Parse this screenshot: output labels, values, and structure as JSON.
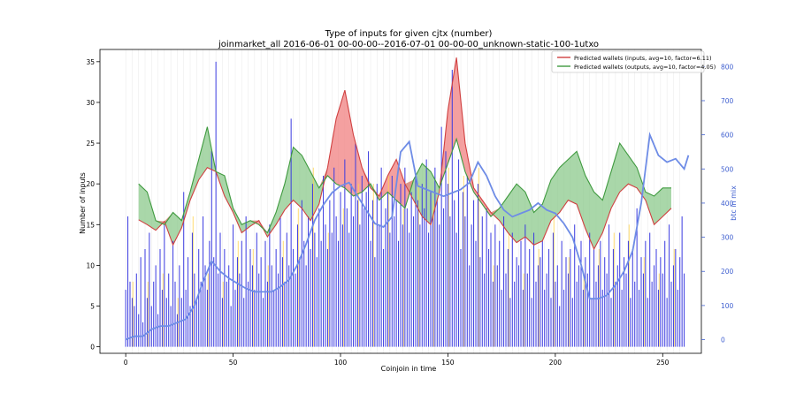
{
  "chart_data": {
    "type": "bar",
    "title": "Type of inputs for given cjtx (number)",
    "subtitle": "joinmarket_all 2016-06-01 00-00-00--2016-07-01 00-00-00_unknown-static-100-1utxo",
    "xlabel": "Coinjoin in time",
    "ylabel": "Number of inputs",
    "y2label": "btc in mix",
    "xlim": [
      -12,
      268
    ],
    "ylim": [
      -0.8,
      36.5
    ],
    "y2lim": [
      -40,
      850
    ],
    "x_ticks": [
      0,
      50,
      100,
      150,
      200,
      250
    ],
    "y_ticks": [
      0,
      5,
      10,
      15,
      20,
      25,
      30,
      35
    ],
    "y2_ticks": [
      0,
      100,
      200,
      300,
      400,
      500,
      600,
      700,
      800
    ],
    "legend": [
      "Predicted wallets (inputs, avg=10, factor=6.11)",
      "Predicted wallets (outputs, avg=10, factor=4.05)"
    ],
    "legend_position": "top-right",
    "colors": {
      "bars": "#3a3ae0",
      "inputs_line": "#d04040",
      "inputs_fill": "#f08080",
      "outputs_line": "#3f9a3f",
      "outputs_fill": "#8cc98c",
      "btc_line": "#6e8ce6",
      "secondary_bars": "#ffd24d",
      "axis_right": "#4060d0"
    },
    "bars": [
      7,
      16,
      8,
      6,
      5,
      9,
      4,
      11,
      3,
      12,
      6,
      14,
      5,
      8,
      10,
      4,
      12,
      7,
      15,
      6,
      9,
      5,
      13,
      8,
      4,
      10,
      6,
      19,
      7,
      11,
      5,
      14,
      9,
      6,
      12,
      8,
      16,
      10,
      7,
      13,
      24,
      11,
      35,
      9,
      14,
      6,
      12,
      8,
      10,
      5,
      15,
      7,
      11,
      9,
      13,
      6,
      16,
      8,
      12,
      10,
      7,
      14,
      9,
      11,
      6,
      13,
      8,
      15,
      10,
      7,
      12,
      9,
      16,
      11,
      8,
      14,
      10,
      28,
      12,
      9,
      15,
      11,
      18,
      13,
      10,
      16,
      12,
      20,
      14,
      11,
      17,
      13,
      21,
      15,
      12,
      18,
      14,
      22,
      16,
      13,
      19,
      15,
      23,
      17,
      14,
      20,
      16,
      25,
      18,
      15,
      21,
      17,
      19,
      24,
      13,
      18,
      11,
      20,
      15,
      22,
      12,
      17,
      19,
      14,
      21,
      16,
      18,
      13,
      20,
      15,
      22,
      17,
      14,
      19,
      16,
      21,
      18,
      15,
      20,
      17,
      23,
      14,
      19,
      16,
      22,
      18,
      15,
      27,
      17,
      24,
      20,
      16,
      34,
      18,
      14,
      23,
      12,
      19,
      16,
      21,
      10,
      15,
      18,
      13,
      20,
      11,
      16,
      9,
      17,
      12,
      14,
      8,
      15,
      10,
      13,
      7,
      16,
      9,
      12,
      6,
      14,
      8,
      11,
      10,
      13,
      7,
      15,
      9,
      12,
      6,
      14,
      8,
      10,
      11,
      13,
      7,
      9,
      12,
      6,
      14,
      8,
      10,
      5,
      13,
      7,
      11,
      9,
      12,
      6,
      15,
      8,
      10,
      13,
      7,
      11,
      9,
      14,
      6,
      12,
      8,
      10,
      13,
      7,
      11,
      9,
      15,
      6,
      12,
      8,
      10,
      14,
      7,
      11,
      9,
      13,
      6,
      12,
      8,
      17,
      7,
      11,
      9,
      13,
      6,
      14,
      8,
      10,
      12,
      7,
      11,
      9,
      13,
      6,
      15,
      8,
      10,
      12,
      7,
      11,
      16,
      9
    ],
    "inputs_wallets": [
      [
        6,
        15.6
      ],
      [
        10,
        15.0
      ],
      [
        14,
        14.3
      ],
      [
        18,
        15.4
      ],
      [
        22,
        12.5
      ],
      [
        26,
        14.6
      ],
      [
        30,
        18.0
      ],
      [
        34,
        20.5
      ],
      [
        38,
        22.0
      ],
      [
        42,
        21.5
      ],
      [
        46,
        18.5
      ],
      [
        50,
        16.5
      ],
      [
        54,
        14.0
      ],
      [
        58,
        14.8
      ],
      [
        62,
        15.5
      ],
      [
        66,
        13.5
      ],
      [
        70,
        15.0
      ],
      [
        74,
        16.8
      ],
      [
        78,
        18.0
      ],
      [
        82,
        17.0
      ],
      [
        86,
        15.5
      ],
      [
        90,
        17.5
      ],
      [
        94,
        22.0
      ],
      [
        98,
        28.0
      ],
      [
        102,
        31.5
      ],
      [
        106,
        26.0
      ],
      [
        110,
        22.0
      ],
      [
        114,
        19.5
      ],
      [
        118,
        18.5
      ],
      [
        122,
        21.0
      ],
      [
        126,
        23.0
      ],
      [
        130,
        20.0
      ],
      [
        134,
        18.0
      ],
      [
        138,
        16.0
      ],
      [
        142,
        15.0
      ],
      [
        146,
        19.0
      ],
      [
        150,
        29.0
      ],
      [
        154,
        35.5
      ],
      [
        158,
        25.0
      ],
      [
        162,
        19.5
      ],
      [
        166,
        18.0
      ],
      [
        170,
        16.5
      ],
      [
        174,
        15.5
      ],
      [
        178,
        14.0
      ],
      [
        182,
        12.8
      ],
      [
        186,
        13.5
      ],
      [
        190,
        12.5
      ],
      [
        194,
        13.0
      ],
      [
        198,
        15.5
      ],
      [
        202,
        16.5
      ],
      [
        206,
        18.0
      ],
      [
        210,
        17.5
      ],
      [
        214,
        14.5
      ],
      [
        218,
        12.0
      ],
      [
        222,
        14.0
      ],
      [
        226,
        17.0
      ],
      [
        230,
        19.0
      ],
      [
        234,
        20.0
      ],
      [
        238,
        19.5
      ],
      [
        242,
        18.0
      ],
      [
        246,
        15.0
      ],
      [
        250,
        16.0
      ],
      [
        254,
        17.0
      ]
    ],
    "outputs_wallets": [
      [
        6,
        20.0
      ],
      [
        10,
        19.0
      ],
      [
        14,
        15.5
      ],
      [
        18,
        15.0
      ],
      [
        22,
        16.5
      ],
      [
        26,
        15.5
      ],
      [
        30,
        19.0
      ],
      [
        34,
        23.0
      ],
      [
        38,
        27.0
      ],
      [
        42,
        21.5
      ],
      [
        46,
        21.0
      ],
      [
        50,
        17.0
      ],
      [
        54,
        15.0
      ],
      [
        58,
        15.5
      ],
      [
        62,
        15.0
      ],
      [
        66,
        14.0
      ],
      [
        70,
        16.5
      ],
      [
        74,
        20.0
      ],
      [
        78,
        24.5
      ],
      [
        82,
        23.5
      ],
      [
        86,
        21.5
      ],
      [
        90,
        19.5
      ],
      [
        94,
        21.0
      ],
      [
        98,
        20.0
      ],
      [
        102,
        19.5
      ],
      [
        106,
        18.5
      ],
      [
        110,
        19.0
      ],
      [
        114,
        20.0
      ],
      [
        118,
        18.0
      ],
      [
        122,
        19.0
      ],
      [
        126,
        18.0
      ],
      [
        130,
        17.0
      ],
      [
        134,
        20.5
      ],
      [
        138,
        22.5
      ],
      [
        142,
        21.5
      ],
      [
        146,
        19.5
      ],
      [
        150,
        22.5
      ],
      [
        154,
        25.5
      ],
      [
        158,
        21.5
      ],
      [
        162,
        19.0
      ],
      [
        166,
        17.5
      ],
      [
        170,
        16.0
      ],
      [
        174,
        17.0
      ],
      [
        178,
        18.5
      ],
      [
        182,
        20.0
      ],
      [
        186,
        19.0
      ],
      [
        190,
        16.5
      ],
      [
        194,
        17.5
      ],
      [
        198,
        20.5
      ],
      [
        202,
        22.0
      ],
      [
        206,
        23.0
      ],
      [
        210,
        24.0
      ],
      [
        214,
        21.0
      ],
      [
        218,
        19.0
      ],
      [
        222,
        18.0
      ],
      [
        226,
        21.5
      ],
      [
        230,
        25.0
      ],
      [
        234,
        23.5
      ],
      [
        238,
        22.0
      ],
      [
        242,
        19.0
      ],
      [
        246,
        18.5
      ],
      [
        250,
        19.5
      ],
      [
        254,
        19.5
      ]
    ],
    "btc_in_mix": [
      [
        0,
        0
      ],
      [
        4,
        10
      ],
      [
        8,
        10
      ],
      [
        12,
        30
      ],
      [
        16,
        40
      ],
      [
        20,
        40
      ],
      [
        24,
        50
      ],
      [
        28,
        60
      ],
      [
        32,
        100
      ],
      [
        36,
        170
      ],
      [
        40,
        230
      ],
      [
        44,
        200
      ],
      [
        48,
        180
      ],
      [
        52,
        165
      ],
      [
        56,
        150
      ],
      [
        60,
        140
      ],
      [
        64,
        140
      ],
      [
        68,
        140
      ],
      [
        72,
        155
      ],
      [
        76,
        175
      ],
      [
        80,
        220
      ],
      [
        84,
        280
      ],
      [
        88,
        350
      ],
      [
        92,
        395
      ],
      [
        96,
        430
      ],
      [
        100,
        450
      ],
      [
        104,
        460
      ],
      [
        108,
        420
      ],
      [
        112,
        380
      ],
      [
        116,
        340
      ],
      [
        120,
        330
      ],
      [
        124,
        360
      ],
      [
        128,
        550
      ],
      [
        132,
        580
      ],
      [
        136,
        450
      ],
      [
        140,
        440
      ],
      [
        144,
        430
      ],
      [
        148,
        420
      ],
      [
        152,
        430
      ],
      [
        156,
        440
      ],
      [
        160,
        460
      ],
      [
        164,
        520
      ],
      [
        168,
        480
      ],
      [
        172,
        420
      ],
      [
        176,
        380
      ],
      [
        180,
        360
      ],
      [
        184,
        370
      ],
      [
        188,
        380
      ],
      [
        192,
        400
      ],
      [
        196,
        380
      ],
      [
        200,
        370
      ],
      [
        204,
        340
      ],
      [
        208,
        300
      ],
      [
        212,
        220
      ],
      [
        216,
        120
      ],
      [
        220,
        120
      ],
      [
        224,
        130
      ],
      [
        228,
        160
      ],
      [
        232,
        200
      ],
      [
        236,
        260
      ],
      [
        240,
        400
      ],
      [
        244,
        600
      ],
      [
        248,
        540
      ],
      [
        252,
        520
      ],
      [
        256,
        530
      ],
      [
        260,
        500
      ],
      [
        262,
        540
      ]
    ]
  }
}
